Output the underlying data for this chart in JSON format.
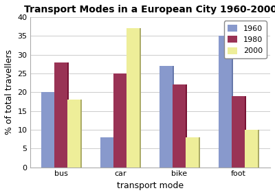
{
  "title": "Transport Modes in a European City 1960-2000",
  "xlabel": "transport mode",
  "ylabel": "% of total travellers",
  "categories": [
    "bus",
    "car",
    "bike",
    "foot"
  ],
  "years": [
    "1960",
    "1980",
    "2000"
  ],
  "values": {
    "1960": [
      20,
      8,
      27,
      35
    ],
    "1980": [
      28,
      25,
      22,
      19
    ],
    "2000": [
      18,
      37,
      8,
      10
    ]
  },
  "colors": {
    "1960": "#8899cc",
    "1980": "#993355",
    "2000": "#eeee99"
  },
  "shadow_colors": {
    "1960": "#6677aa",
    "1980": "#771133",
    "2000": "#aaaa66"
  },
  "ylim": [
    0,
    40
  ],
  "yticks": [
    0,
    5,
    10,
    15,
    20,
    25,
    30,
    35,
    40
  ],
  "bar_width": 0.22,
  "legend_loc": "upper right",
  "title_fontsize": 10,
  "axis_label_fontsize": 9,
  "tick_fontsize": 8,
  "legend_fontsize": 8,
  "background_color": "#ffffff",
  "grid_color": "#cccccc"
}
